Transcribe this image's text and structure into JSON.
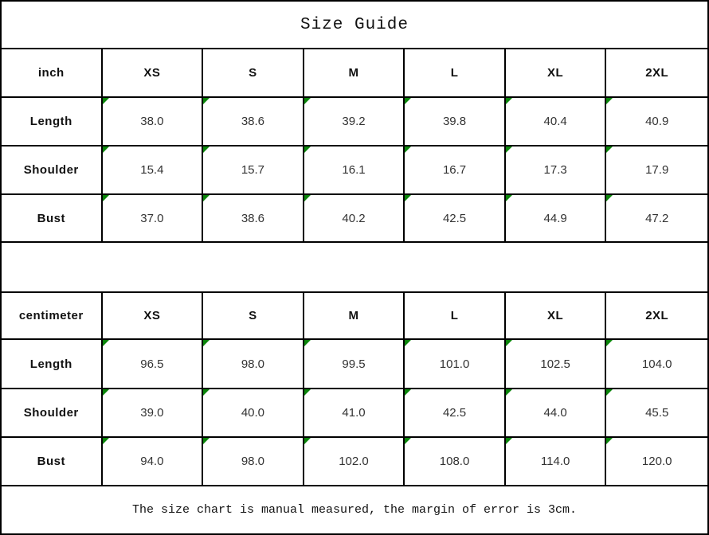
{
  "title": "Size Guide",
  "sections": [
    {
      "unit_label": "inch",
      "sizes": [
        "XS",
        "S",
        "M",
        "L",
        "XL",
        "2XL"
      ],
      "rows": [
        {
          "label": "Length",
          "values": [
            "38.0",
            "38.6",
            "39.2",
            "39.8",
            "40.4",
            "40.9"
          ]
        },
        {
          "label": "Shoulder",
          "values": [
            "15.4",
            "15.7",
            "16.1",
            "16.7",
            "17.3",
            "17.9"
          ]
        },
        {
          "label": "Bust",
          "values": [
            "37.0",
            "38.6",
            "40.2",
            "42.5",
            "44.9",
            "47.2"
          ]
        }
      ]
    },
    {
      "unit_label": "centimeter",
      "sizes": [
        "XS",
        "S",
        "M",
        "L",
        "XL",
        "2XL"
      ],
      "rows": [
        {
          "label": "Length",
          "values": [
            "96.5",
            "98.0",
            "99.5",
            "101.0",
            "102.5",
            "104.0"
          ]
        },
        {
          "label": "Shoulder",
          "values": [
            "39.0",
            "40.0",
            "41.0",
            "42.5",
            "44.0",
            "45.5"
          ]
        },
        {
          "label": "Bust",
          "values": [
            "94.0",
            "98.0",
            "102.0",
            "108.0",
            "114.0",
            "120.0"
          ]
        }
      ]
    }
  ],
  "footer_note": "The size chart is manual measured, the margin of error is 3cm.",
  "colors": {
    "border": "#000000",
    "corner_flag_green": "#0b850b",
    "header_text": "#111111",
    "value_text": "#333333"
  }
}
